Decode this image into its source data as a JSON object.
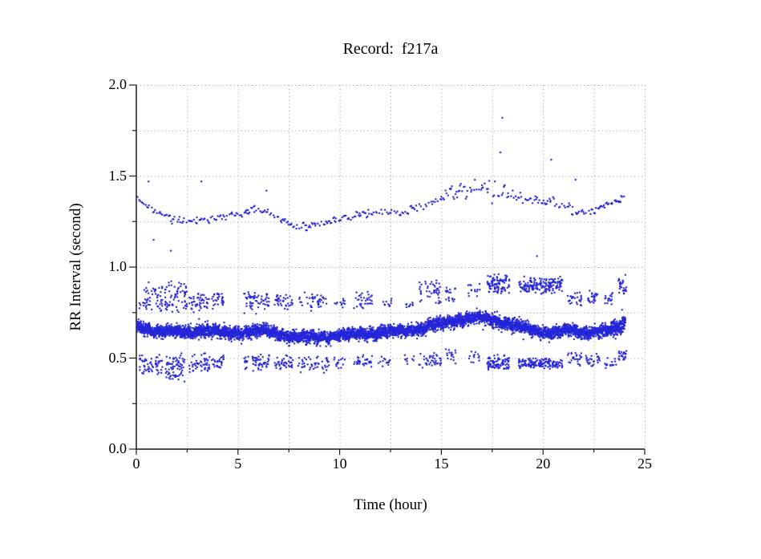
{
  "chart_data": {
    "type": "scatter",
    "title": "Record:  f217a",
    "xlabel": "Time (hour)",
    "ylabel": "RR Interval (second)",
    "xlim": [
      0,
      25
    ],
    "ylim": [
      0.0,
      2.0
    ],
    "xticks": {
      "major": [
        0,
        5,
        10,
        15,
        20,
        25
      ],
      "labels": [
        "0",
        "5",
        "10",
        "15",
        "20",
        "25"
      ],
      "minor_step": 2.5
    },
    "yticks": {
      "major": [
        0,
        0.5,
        1.0,
        1.5,
        2.0
      ],
      "labels": [
        "0.0",
        "0.5",
        "1.0",
        "1.5",
        "2.0"
      ],
      "minor_step": 0.25
    },
    "grid": {
      "show": true,
      "style": "dotted",
      "color": "#b4b4b4"
    },
    "axis_color": "#1a1a1a",
    "point_color": "#2626d8",
    "point_radius_px": 1.25,
    "legend": "none",
    "series": [
      {
        "name": "main-rr-band",
        "kind": "trend_band",
        "points_per_hour": 260,
        "x_start": 0.03,
        "x_end": 24.05,
        "sigma": 0.016,
        "sigma_zones": [
          [
            23.4,
            24.1,
            0.022
          ]
        ],
        "wobble": [
          [
            2.1,
            0.006
          ],
          [
            0.47,
            0.004
          ],
          [
            7.3,
            0.004
          ]
        ],
        "pair_prob": 0,
        "anchors": [
          [
            0.03,
            0.67
          ],
          [
            0.5,
            0.66
          ],
          [
            1,
            0.646
          ],
          [
            1.5,
            0.648
          ],
          [
            2,
            0.643
          ],
          [
            2.5,
            0.64
          ],
          [
            3,
            0.65
          ],
          [
            3.5,
            0.652
          ],
          [
            4,
            0.645
          ],
          [
            4.5,
            0.637
          ],
          [
            5,
            0.64
          ],
          [
            5.5,
            0.645
          ],
          [
            6,
            0.652
          ],
          [
            6.5,
            0.645
          ],
          [
            7,
            0.632
          ],
          [
            7.5,
            0.622
          ],
          [
            8,
            0.616
          ],
          [
            8.5,
            0.612
          ],
          [
            9,
            0.614
          ],
          [
            9.5,
            0.618
          ],
          [
            10,
            0.625
          ],
          [
            10.5,
            0.628
          ],
          [
            11,
            0.633
          ],
          [
            11.5,
            0.63
          ],
          [
            12,
            0.64
          ],
          [
            12.5,
            0.648
          ],
          [
            13,
            0.65
          ],
          [
            13.5,
            0.655
          ],
          [
            14,
            0.662
          ],
          [
            14.5,
            0.678
          ],
          [
            15,
            0.688
          ],
          [
            15.5,
            0.7
          ],
          [
            16,
            0.712
          ],
          [
            16.5,
            0.72
          ],
          [
            17,
            0.722
          ],
          [
            17.5,
            0.712
          ],
          [
            18,
            0.7
          ],
          [
            18.5,
            0.682
          ],
          [
            19,
            0.668
          ],
          [
            19.5,
            0.655
          ],
          [
            20,
            0.645
          ],
          [
            20.5,
            0.638
          ],
          [
            21,
            0.65
          ],
          [
            21.5,
            0.652
          ],
          [
            22,
            0.64
          ],
          [
            22.5,
            0.645
          ],
          [
            23,
            0.648
          ],
          [
            23.5,
            0.66
          ],
          [
            23.8,
            0.675
          ],
          [
            24.05,
            0.7
          ]
        ]
      },
      {
        "name": "long-rr-line",
        "kind": "trend_band",
        "points_per_hour": 11,
        "x_start": 0.05,
        "x_end": 24.0,
        "sigma": 0.01,
        "sigma_zones": [
          [
            15,
            18.7,
            0.022
          ],
          [
            18.7,
            21.5,
            0.015
          ]
        ],
        "wobble": [],
        "pair_prob": 0.45,
        "anchors": [
          [
            0.05,
            1.38
          ],
          [
            0.3,
            1.35
          ],
          [
            0.7,
            1.32
          ],
          [
            1,
            1.3
          ],
          [
            1.5,
            1.28
          ],
          [
            2,
            1.253
          ],
          [
            2.5,
            1.25
          ],
          [
            3,
            1.268
          ],
          [
            3.5,
            1.258
          ],
          [
            4,
            1.262
          ],
          [
            4.5,
            1.28
          ],
          [
            5,
            1.29
          ],
          [
            5.5,
            1.308
          ],
          [
            6,
            1.318
          ],
          [
            6.5,
            1.3
          ],
          [
            7,
            1.27
          ],
          [
            7.5,
            1.24
          ],
          [
            8,
            1.222
          ],
          [
            8.5,
            1.22
          ],
          [
            9,
            1.23
          ],
          [
            9.5,
            1.248
          ],
          [
            10,
            1.26
          ],
          [
            10.5,
            1.27
          ],
          [
            11,
            1.288
          ],
          [
            11.5,
            1.298
          ],
          [
            12,
            1.29
          ],
          [
            12.5,
            1.3
          ],
          [
            13,
            1.3
          ],
          [
            13.5,
            1.318
          ],
          [
            14,
            1.33
          ],
          [
            14.5,
            1.35
          ],
          [
            15,
            1.37
          ],
          [
            15.5,
            1.4
          ],
          [
            16,
            1.42
          ],
          [
            16.5,
            1.43
          ],
          [
            17,
            1.44
          ],
          [
            17.3,
            1.448
          ],
          [
            17.5,
            1.432
          ],
          [
            18,
            1.408
          ],
          [
            18.5,
            1.39
          ],
          [
            19,
            1.38
          ],
          [
            19.5,
            1.37
          ],
          [
            20,
            1.36
          ],
          [
            20.5,
            1.35
          ],
          [
            21,
            1.33
          ],
          [
            21.5,
            1.31
          ],
          [
            22,
            1.3
          ],
          [
            22.5,
            1.312
          ],
          [
            23,
            1.33
          ],
          [
            23.5,
            1.36
          ],
          [
            24,
            1.388
          ]
        ]
      },
      {
        "name": "ectopic-clusters-upper",
        "kind": "cluster_segments",
        "segments": [
          [
            0.15,
            1.3,
            0.74,
            0.92,
            55
          ],
          [
            1.4,
            2.5,
            0.74,
            0.93,
            70
          ],
          [
            2.6,
            3.6,
            0.75,
            0.87,
            48
          ],
          [
            3.7,
            4.3,
            0.76,
            0.88,
            30
          ],
          [
            5.3,
            6.6,
            0.74,
            0.88,
            60
          ],
          [
            6.8,
            7.7,
            0.76,
            0.86,
            38
          ],
          [
            7.9,
            9.4,
            0.75,
            0.87,
            42
          ],
          [
            9.7,
            10.3,
            0.77,
            0.84,
            12
          ],
          [
            10.7,
            11.6,
            0.76,
            0.87,
            32
          ],
          [
            12.0,
            12.6,
            0.78,
            0.84,
            10
          ],
          [
            13.2,
            13.7,
            0.76,
            0.82,
            9
          ],
          [
            13.9,
            15.0,
            0.78,
            0.95,
            45
          ],
          [
            15.2,
            15.7,
            0.8,
            0.9,
            18
          ],
          [
            16.3,
            16.9,
            0.82,
            0.92,
            14
          ],
          [
            17.25,
            18.35,
            0.84,
            0.97,
            95
          ],
          [
            18.8,
            20.95,
            0.85,
            0.95,
            170
          ],
          [
            21.2,
            21.9,
            0.78,
            0.88,
            26
          ],
          [
            22.1,
            22.8,
            0.78,
            0.88,
            26
          ],
          [
            23.0,
            23.5,
            0.78,
            0.86,
            16
          ],
          [
            23.7,
            24.1,
            0.82,
            0.96,
            28
          ]
        ]
      },
      {
        "name": "ectopic-clusters-lower",
        "kind": "cluster_segments",
        "segments": [
          [
            0.15,
            1.3,
            0.4,
            0.53,
            60
          ],
          [
            1.4,
            2.4,
            0.36,
            0.53,
            75
          ],
          [
            2.6,
            3.6,
            0.42,
            0.53,
            50
          ],
          [
            3.7,
            4.3,
            0.43,
            0.53,
            28
          ],
          [
            5.3,
            6.6,
            0.42,
            0.53,
            58
          ],
          [
            6.8,
            7.7,
            0.43,
            0.52,
            40
          ],
          [
            7.9,
            9.5,
            0.41,
            0.52,
            48
          ],
          [
            9.7,
            10.3,
            0.44,
            0.52,
            14
          ],
          [
            10.7,
            11.6,
            0.44,
            0.53,
            32
          ],
          [
            11.9,
            12.6,
            0.44,
            0.52,
            14
          ],
          [
            13.2,
            13.7,
            0.45,
            0.52,
            9
          ],
          [
            13.9,
            15.0,
            0.44,
            0.54,
            38
          ],
          [
            15.2,
            15.7,
            0.46,
            0.55,
            16
          ],
          [
            16.3,
            16.9,
            0.46,
            0.55,
            13
          ],
          [
            17.25,
            18.35,
            0.43,
            0.52,
            85
          ],
          [
            18.8,
            20.95,
            0.44,
            0.5,
            150
          ],
          [
            21.2,
            21.9,
            0.45,
            0.54,
            26
          ],
          [
            22.1,
            22.8,
            0.45,
            0.53,
            26
          ],
          [
            23.0,
            23.6,
            0.44,
            0.52,
            16
          ],
          [
            23.7,
            24.1,
            0.46,
            0.55,
            22
          ]
        ]
      },
      {
        "name": "outliers",
        "kind": "points",
        "points": [
          [
            0.6,
            1.47
          ],
          [
            3.2,
            1.47
          ],
          [
            6.4,
            1.42
          ],
          [
            17.9,
            1.63
          ],
          [
            18.0,
            1.82
          ],
          [
            20.4,
            1.59
          ],
          [
            21.6,
            1.48
          ],
          [
            0.85,
            1.15
          ],
          [
            1.7,
            1.09
          ],
          [
            19.7,
            1.06
          ]
        ]
      }
    ]
  }
}
